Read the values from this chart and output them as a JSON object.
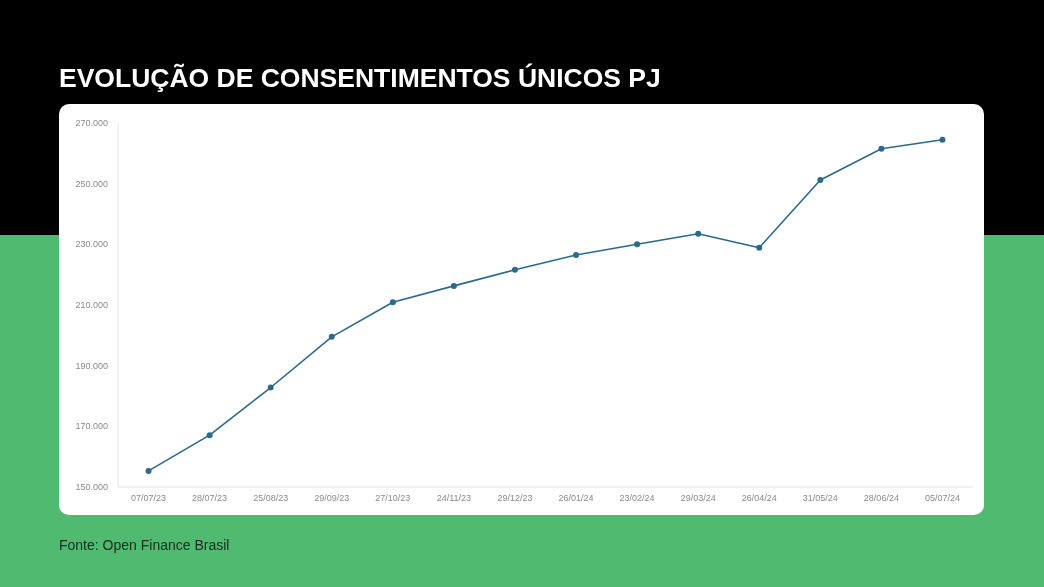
{
  "chart_data": {
    "type": "line",
    "title": "EVOLUÇÃO DE CONSENTIMENTOS ÚNICOS PJ",
    "annotations": [
      "Fonte: Open Finance Brasil"
    ],
    "categories": [
      "07/07/23",
      "28/07/23",
      "25/08/23",
      "29/09/23",
      "27/10/23",
      "24/11/23",
      "29/12/23",
      "26/01/24",
      "23/02/24",
      "29/03/24",
      "26/04/24",
      "31/05/24",
      "28/06/24",
      "05/07/24"
    ],
    "series": [
      {
        "color": "#2b6a8a",
        "values": [
          155300,
          167100,
          182800,
          199500,
          210900,
          216300,
          221600,
          226500,
          230000,
          233500,
          228900,
          251200,
          261500,
          264500
        ]
      }
    ],
    "ylim": [
      150000,
      270000
    ],
    "yticks": [
      {
        "value": 150000,
        "label": "150.000"
      },
      {
        "value": 170000,
        "label": "170.000"
      },
      {
        "value": 190000,
        "label": "190.000"
      },
      {
        "value": 210000,
        "label": "210.000"
      },
      {
        "value": 230000,
        "label": "230.000"
      },
      {
        "value": 250000,
        "label": "250.000"
      },
      {
        "value": 270000,
        "label": "270.000"
      }
    ],
    "marker": "circle",
    "line_style": "solid"
  }
}
